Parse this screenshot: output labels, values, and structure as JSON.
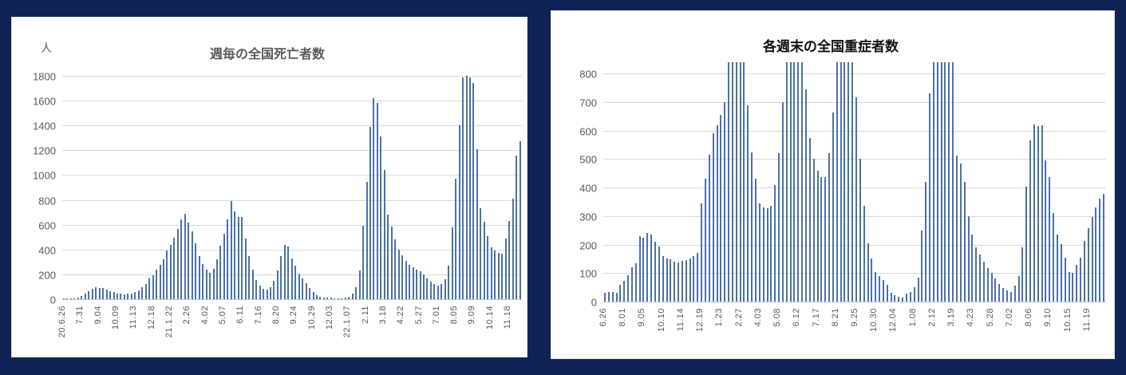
{
  "page": {
    "background_color": "#0E2254",
    "panel_color": "#ffffff"
  },
  "colors": {
    "bar": "#4B72A8",
    "gridline": "#d9d9d9",
    "axis_line": "#c6c6c6",
    "tick_text": "#595959",
    "left_title_text": "#595959",
    "right_title_text": "#111111"
  },
  "chart_data": [
    {
      "type": "bar",
      "title": "週毎の全国死亡者数",
      "unit_label": "人",
      "grid": true,
      "legend": "none",
      "ylim": [
        0,
        1800
      ],
      "yticks": [
        0,
        200,
        400,
        600,
        800,
        1000,
        1200,
        1400,
        1600,
        1800
      ],
      "x_label_every": 5,
      "x_labels": [
        "20.6.26",
        "7.31",
        "9.04",
        "10.09",
        "11.13",
        "12.18",
        "21.1.22",
        "2.26",
        "4.02",
        "5.07",
        "6.11",
        "7.16",
        "8.20",
        "9.24",
        "10.29",
        "12.03",
        "22.1.07",
        "2.11",
        "3.18",
        "4.22",
        "5.27",
        "7.01",
        "8.05",
        "9.09",
        "10.14",
        "11.18"
      ],
      "values": [
        2,
        3,
        5,
        8,
        15,
        25,
        45,
        65,
        85,
        95,
        88,
        92,
        78,
        65,
        55,
        48,
        42,
        40,
        44,
        48,
        56,
        70,
        95,
        125,
        165,
        190,
        235,
        275,
        320,
        395,
        435,
        495,
        565,
        640,
        685,
        620,
        545,
        450,
        350,
        280,
        235,
        215,
        245,
        320,
        430,
        530,
        640,
        790,
        705,
        665,
        660,
        490,
        345,
        240,
        155,
        110,
        85,
        80,
        95,
        150,
        230,
        350,
        440,
        425,
        330,
        270,
        205,
        170,
        130,
        90,
        55,
        35,
        22,
        15,
        12,
        10,
        8,
        6,
        8,
        10,
        18,
        45,
        95,
        230,
        590,
        945,
        1390,
        1620,
        1580,
        1310,
        1040,
        680,
        585,
        480,
        400,
        355,
        310,
        275,
        255,
        240,
        225,
        200,
        170,
        140,
        120,
        110,
        125,
        160,
        270,
        580,
        970,
        1400,
        1790,
        1800,
        1790,
        1745,
        1210,
        730,
        625,
        510,
        415,
        390,
        375,
        365,
        490,
        630,
        810,
        1160,
        1275
      ]
    },
    {
      "type": "bar",
      "title": "各週末の全国重症者数",
      "unit_label": "",
      "grid": true,
      "legend": "none",
      "ylim": [
        0,
        840
      ],
      "yticks": [
        0,
        100,
        200,
        300,
        400,
        500,
        600,
        700,
        800
      ],
      "note": "Bars drawn to the plot top (value 840) are clipped at the axis maximum; actual values exceed the chart range.",
      "x_label_every": 5,
      "x_labels": [
        "6.26",
        "8.01",
        "9.05",
        "10.10",
        "11.14",
        "12.19",
        "1.23",
        "2.27",
        "4.03",
        "5.08",
        "6.12",
        "7.17",
        "8.21",
        "9.25",
        "10.30",
        "12.04",
        "1.08",
        "2.12",
        "3.19",
        "4.23",
        "5.28",
        "7.02",
        "8.06",
        "9.10",
        "10.15",
        "11.19"
      ],
      "values": [
        30,
        35,
        35,
        30,
        58,
        72,
        92,
        120,
        135,
        230,
        225,
        240,
        235,
        210,
        192,
        160,
        150,
        148,
        140,
        136,
        142,
        147,
        152,
        160,
        170,
        345,
        430,
        515,
        590,
        620,
        655,
        700,
        840,
        840,
        840,
        840,
        840,
        690,
        525,
        430,
        345,
        330,
        328,
        335,
        410,
        520,
        700,
        840,
        840,
        840,
        840,
        840,
        745,
        575,
        500,
        460,
        437,
        438,
        520,
        665,
        840,
        840,
        840,
        840,
        840,
        718,
        500,
        335,
        205,
        150,
        105,
        90,
        75,
        60,
        30,
        22,
        18,
        15,
        28,
        35,
        50,
        85,
        250,
        420,
        730,
        840,
        840,
        840,
        840,
        840,
        840,
        512,
        485,
        420,
        300,
        235,
        190,
        165,
        140,
        118,
        100,
        80,
        62,
        48,
        40,
        35,
        55,
        90,
        190,
        402,
        565,
        622,
        615,
        618,
        495,
        438,
        310,
        235,
        202,
        155,
        103,
        100,
        130,
        155,
        212,
        258,
        298,
        330,
        360,
        378
      ]
    }
  ]
}
